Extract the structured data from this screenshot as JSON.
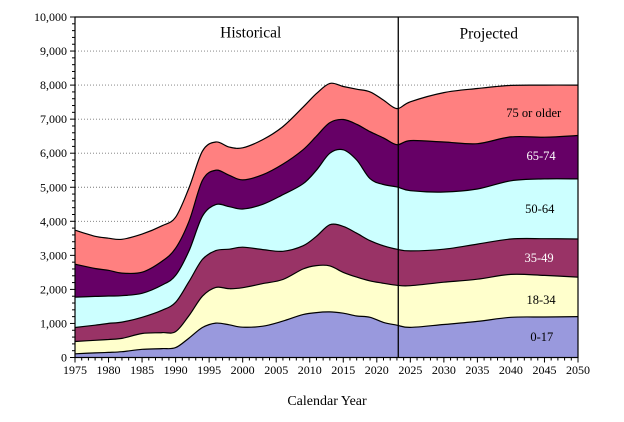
{
  "chart_data": {
    "type": "area",
    "stacked": true,
    "xlabel": "Calendar Year",
    "xlim": [
      1975,
      2050
    ],
    "ylim": [
      0,
      10000
    ],
    "grid": "horizontal-dotted",
    "gridline_color": "#777777",
    "outline_color": "#000000",
    "divider_year": 2023.2,
    "region_labels": [
      {
        "label": "Historical",
        "year": 2001.2,
        "value": 9530
      },
      {
        "label": "Projected",
        "year": 2036.7,
        "value": 9500
      }
    ],
    "y_axis": {
      "tick_values": [
        0,
        1000,
        2000,
        3000,
        4000,
        5000,
        6000,
        7000,
        8000,
        9000,
        10000
      ],
      "tick_labels": [
        "0",
        "1,000",
        "2,000",
        "3,000",
        "4,000",
        "5,000",
        "6,000",
        "7,000",
        "8,000",
        "9,000",
        "10,000"
      ],
      "minor_step": 200
    },
    "x_axis": {
      "tick_values": [
        1975,
        1980,
        1985,
        1990,
        1995,
        2000,
        2005,
        2010,
        2015,
        2020,
        2025,
        2030,
        2035,
        2040,
        2045,
        2050
      ],
      "tick_labels": [
        "1975",
        "1980",
        "1985",
        "1990",
        "1995",
        "2000",
        "2005",
        "2010",
        "2015",
        "2020",
        "2025",
        "2030",
        "2035",
        "2040",
        "2045",
        "2050"
      ],
      "minor_step": 1
    },
    "x": [
      1975,
      1978,
      1980,
      1982,
      1985,
      1988,
      1990,
      1992,
      1994,
      1996,
      1998,
      2000,
      2003,
      2006,
      2009,
      2011,
      2013,
      2015,
      2017,
      2019,
      2021,
      2023,
      2025,
      2030,
      2035,
      2040,
      2045,
      2050
    ],
    "series": [
      {
        "name": "0-17",
        "color": "#9999DD",
        "label_color": "#000000",
        "label_pos": {
          "year": 2044.6,
          "value": 600
        },
        "values": [
          110,
          135,
          150,
          170,
          240,
          260,
          290,
          570,
          880,
          1010,
          960,
          890,
          920,
          1070,
          1260,
          1320,
          1340,
          1300,
          1220,
          1180,
          1030,
          950,
          885,
          970,
          1060,
          1180,
          1190,
          1200
        ]
      },
      {
        "name": "18-34",
        "color": "#FFFFCC",
        "label_color": "#000000",
        "label_pos": {
          "year": 2044.5,
          "value": 1690
        },
        "values": [
          360,
          370,
          380,
          390,
          465,
          470,
          470,
          660,
          920,
          1050,
          1060,
          1160,
          1250,
          1220,
          1340,
          1380,
          1350,
          1200,
          1140,
          1070,
          1150,
          1170,
          1225,
          1240,
          1240,
          1260,
          1220,
          1160
        ]
      },
      {
        "name": "35-49",
        "color": "#993366",
        "label_color": "#FFFFFF",
        "label_pos": {
          "year": 2044.2,
          "value": 2920
        },
        "values": [
          410,
          445,
          470,
          480,
          475,
          660,
          860,
          1000,
          1080,
          1080,
          1160,
          1190,
          1000,
          830,
          680,
          860,
          1210,
          1350,
          1290,
          1180,
          1100,
          1060,
          1020,
          970,
          1030,
          1040,
          1080,
          1120
        ]
      },
      {
        "name": "50-64",
        "color": "#CCFFFF",
        "label_color": "#000000",
        "label_pos": {
          "year": 2044.3,
          "value": 4360
        },
        "values": [
          890,
          845,
          805,
          775,
          705,
          740,
          790,
          900,
          1270,
          1350,
          1250,
          1120,
          1330,
          1660,
          1820,
          1940,
          2100,
          2250,
          2150,
          1820,
          1800,
          1830,
          1770,
          1680,
          1620,
          1710,
          1755,
          1765
        ]
      },
      {
        "name": "65-74",
        "color": "#660066",
        "label_color": "#FFFFFF",
        "label_pos": {
          "year": 2044.5,
          "value": 5920
        },
        "values": [
          970,
          820,
          755,
          665,
          620,
          700,
          800,
          870,
          1050,
          1010,
          920,
          855,
          870,
          900,
          1000,
          1000,
          900,
          890,
          1050,
          1380,
          1370,
          1240,
          1470,
          1470,
          1330,
          1290,
          1225,
          1275
        ]
      },
      {
        "name": "75 or older",
        "color": "#FF8080",
        "label_color": "#000000",
        "label_pos": {
          "year": 2043.4,
          "value": 7180
        },
        "values": [
          1000,
          945,
          945,
          990,
          1120,
          1040,
          910,
          980,
          860,
          830,
          830,
          945,
          1030,
          1100,
          1250,
          1250,
          1150,
          970,
          1030,
          1170,
          1110,
          1060,
          1140,
          1450,
          1620,
          1510,
          1530,
          1480
        ]
      }
    ]
  }
}
